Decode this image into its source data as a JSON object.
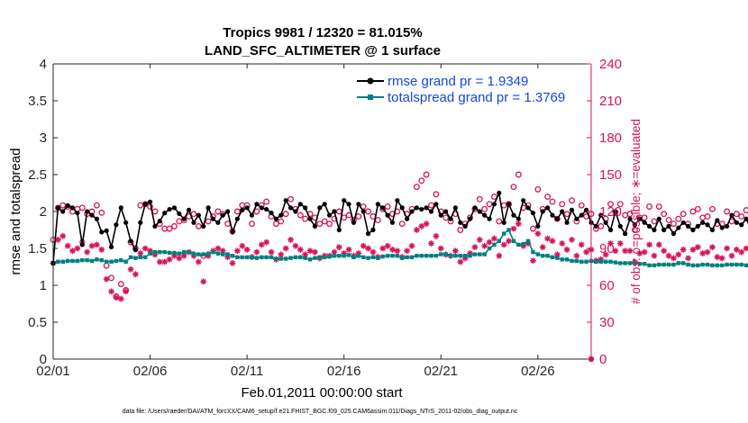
{
  "chart_data": {
    "type": "line",
    "title": "Tropics 9981 / 12320 = 81.015%",
    "subtitle": "LAND_SFC_ALTIMETER @ 1 surface",
    "xlabel": "Feb.01,2011 00:00:00 start",
    "ylabel": "rmse and totalspread",
    "y2label": "# of obs: o=possible; ∗=evaluated",
    "footer": "data file: /Users/raeder/DAI/ATM_forcXX/CAM6_setup/f.e21.FHIST_BGC.f09_025.CAM6assim.011/Diags_NTrS_2011-02/obs_diag_output.nc",
    "x_tick_labels": [
      "02/01",
      "02/06",
      "02/11",
      "02/16",
      "02/21",
      "02/26"
    ],
    "x_tick_days": [
      0,
      5,
      10,
      15,
      20,
      25
    ],
    "xlim_days": [
      0,
      27.75
    ],
    "ylim": [
      0,
      4
    ],
    "y_ticks": [
      0,
      0.5,
      1,
      1.5,
      2,
      2.5,
      3,
      3.5,
      4
    ],
    "y_tick_labels": [
      "0",
      "0.5",
      "1",
      "1.5",
      "2",
      "2.5",
      "3",
      "3.5",
      "4"
    ],
    "y2lim": [
      0,
      240
    ],
    "y2_ticks": [
      0,
      30,
      60,
      90,
      120,
      150,
      180,
      210,
      240
    ],
    "y2_tick_labels": [
      "0",
      "30",
      "60",
      "90",
      "120",
      "150",
      "180",
      "210",
      "240"
    ],
    "x_step_days": 0.25,
    "legend_position": "top-right",
    "series": [
      {
        "name": "rmse grand pr = 1.9349",
        "color": "#000000",
        "marker": "filled-circle",
        "axis": "left",
        "values": [
          1.3,
          2.05,
          2.0,
          2.08,
          2.05,
          1.98,
          1.55,
          2.0,
          1.95,
          1.9,
          1.72,
          1.74,
          1.52,
          1.82,
          2.05,
          1.85,
          1.6,
          1.48,
          1.85,
          2.1,
          2.13,
          1.8,
          1.87,
          1.98,
          2.03,
          2.05,
          1.97,
          1.9,
          2.02,
          1.85,
          1.95,
          1.8,
          2.05,
          1.9,
          1.85,
          1.95,
          2.0,
          1.72,
          1.9,
          2.02,
          2.05,
          1.95,
          2.1,
          2.05,
          2.03,
          1.98,
          1.9,
          1.95,
          2.15,
          2.05,
          2.0,
          2.1,
          2.05,
          1.9,
          1.8,
          2.05,
          2.1,
          1.95,
          2.0,
          1.75,
          2.15,
          2.1,
          1.85,
          2.1,
          2.0,
          1.7,
          1.75,
          2.1,
          2.05,
          1.95,
          1.85,
          2.15,
          2.05,
          1.9,
          2.0,
          2.05,
          2.03,
          2.05,
          2.0,
          2.1,
          1.95,
          2.0,
          1.9,
          2.05,
          1.85,
          1.8,
          1.9,
          2.05,
          2.0,
          1.95,
          1.9,
          2.1,
          2.25,
          1.85,
          2.1,
          1.95,
          1.9,
          2.15,
          2.05,
          1.98,
          1.8,
          2.0,
          2.05,
          1.95,
          1.9,
          2.0,
          1.85,
          2.02,
          1.9,
          1.95,
          2.02,
          1.85,
          1.8,
          1.95,
          1.85,
          1.75,
          2.0,
          1.8,
          1.7,
          1.9,
          1.82,
          1.9,
          1.85,
          1.8,
          1.75,
          1.9,
          1.75,
          1.8,
          1.7,
          1.78,
          1.85,
          1.8,
          1.75,
          1.8,
          1.85,
          1.82,
          1.75,
          1.88,
          1.78,
          1.8,
          1.95,
          1.85,
          1.82,
          1.9,
          1.75,
          2.05,
          1.9,
          2.1,
          1.85,
          1.9,
          2.0,
          2.2,
          2.0,
          1.9,
          1.85,
          1.95,
          1.98,
          2.1,
          2.12,
          1.95,
          2.08,
          1.8,
          1.95,
          1.96,
          1.98
        ]
      },
      {
        "name": "totalspread grand pr = 1.3769",
        "color": "#008080",
        "marker": "filled-square",
        "axis": "left",
        "values": [
          1.3,
          1.32,
          1.32,
          1.33,
          1.33,
          1.33,
          1.34,
          1.34,
          1.33,
          1.35,
          1.34,
          1.32,
          1.32,
          1.33,
          1.34,
          1.32,
          1.38,
          1.37,
          1.38,
          1.38,
          1.43,
          1.45,
          1.45,
          1.45,
          1.44,
          1.44,
          1.43,
          1.45,
          1.45,
          1.43,
          1.42,
          1.42,
          1.43,
          1.45,
          1.43,
          1.42,
          1.42,
          1.4,
          1.38,
          1.38,
          1.38,
          1.38,
          1.37,
          1.38,
          1.38,
          1.38,
          1.36,
          1.36,
          1.36,
          1.37,
          1.38,
          1.38,
          1.37,
          1.35,
          1.37,
          1.38,
          1.38,
          1.39,
          1.4,
          1.4,
          1.4,
          1.41,
          1.38,
          1.4,
          1.38,
          1.37,
          1.38,
          1.37,
          1.39,
          1.4,
          1.4,
          1.4,
          1.37,
          1.38,
          1.38,
          1.4,
          1.4,
          1.4,
          1.4,
          1.4,
          1.42,
          1.42,
          1.4,
          1.4,
          1.4,
          1.4,
          1.4,
          1.42,
          1.42,
          1.42,
          1.5,
          1.55,
          1.6,
          1.7,
          1.75,
          1.6,
          1.55,
          1.56,
          1.6,
          1.45,
          1.42,
          1.4,
          1.4,
          1.38,
          1.37,
          1.35,
          1.35,
          1.33,
          1.33,
          1.32,
          1.32,
          1.33,
          1.32,
          1.32,
          1.32,
          1.32,
          1.31,
          1.3,
          1.3,
          1.3,
          1.3,
          1.29,
          1.29,
          1.27,
          1.27,
          1.28,
          1.28,
          1.28,
          1.28,
          1.3,
          1.3,
          1.28,
          1.27,
          1.27,
          1.28,
          1.28,
          1.27,
          1.27,
          1.27,
          1.28,
          1.28,
          1.28,
          1.28,
          1.27,
          1.27,
          1.28,
          1.29,
          1.3,
          1.3,
          1.3,
          1.3,
          1.28,
          1.27,
          1.27,
          1.27,
          1.28,
          1.27,
          1.28,
          1.27,
          1.25,
          1.27,
          1.28,
          1.28,
          1.28,
          1.27,
          1.27,
          1.27,
          1.27
        ]
      },
      {
        "name": "# obs possible",
        "color": "#d6145a",
        "marker": "open-circle",
        "axis": "right",
        "values": [
          97,
          123,
          125,
          124,
          120,
          122,
          123,
          118,
          120,
          125,
          119,
          76,
          66,
          51,
          61,
          56,
          95,
          90,
          125,
          126,
          124,
          120,
          110,
          106,
          106,
          108,
          112,
          113,
          116,
          118,
          108,
          84,
          112,
          116,
          120,
          118,
          110,
          104,
          120,
          125,
          125,
          110,
          120,
          125,
          128,
          116,
          110,
          112,
          118,
          130,
          122,
          117,
          114,
          118,
          115,
          110,
          112,
          110,
          114,
          120,
          115,
          117,
          113,
          116,
          124,
          120,
          116,
          113,
          122,
          124,
          118,
          120,
          110,
          118,
          122,
          140,
          145,
          150,
          125,
          134,
          120,
          115,
          112,
          118,
          105,
          110,
          115,
          122,
          130,
          122,
          126,
          132,
          112,
          125,
          126,
          140,
          150,
          123,
          125,
          106,
          138,
          122,
          132,
          128,
          114,
          126,
          118,
          129,
          112,
          125,
          116,
          118,
          106,
          108,
          114,
          126,
          119,
          126,
          117,
          118,
          105,
          115,
          115,
          124,
          112,
          124,
          118,
          113,
          110,
          114,
          118,
          110,
          120,
          122,
          115,
          116,
          122,
          110,
          110,
          120,
          112,
          118,
          116,
          121,
          126,
          122,
          109,
          116,
          120,
          108,
          130,
          108,
          125,
          114,
          110,
          116,
          112,
          122,
          115,
          110,
          118,
          111,
          118,
          116
        ]
      },
      {
        "name": "# obs evaluated",
        "color": "#d6145a",
        "marker": "asterisk",
        "axis": "right",
        "values": [
          78,
          97,
          100,
          92,
          88,
          90,
          95,
          87,
          92,
          93,
          89,
          65,
          55,
          50,
          49,
          55,
          73,
          69,
          86,
          90,
          88,
          85,
          79,
          79,
          81,
          84,
          82,
          84,
          87,
          84,
          79,
          63,
          84,
          88,
          90,
          88,
          83,
          78,
          88,
          92,
          89,
          83,
          87,
          93,
          95,
          87,
          81,
          85,
          90,
          97,
          92,
          89,
          85,
          88,
          87,
          82,
          84,
          84,
          87,
          91,
          86,
          89,
          84,
          86,
          92,
          90,
          87,
          83,
          90,
          92,
          89,
          88,
          83,
          88,
          92,
          105,
          108,
          110,
          94,
          100,
          90,
          85,
          84,
          88,
          79,
          82,
          86,
          91,
          97,
          92,
          95,
          98,
          84,
          93,
          96,
          106,
          110,
          92,
          94,
          80,
          102,
          91,
          98,
          96,
          85,
          94,
          89,
          97,
          84,
          93,
          87,
          89,
          80,
          81,
          85,
          94,
          88,
          94,
          88,
          88,
          79,
          86,
          87,
          93,
          84,
          93,
          88,
          84,
          82,
          85,
          89,
          82,
          89,
          91,
          86,
          87,
          91,
          83,
          82,
          90,
          84,
          89,
          87,
          90,
          94,
          91,
          81,
          87,
          90,
          80,
          96,
          80,
          93,
          85,
          82,
          87,
          83,
          91,
          86,
          82,
          88,
          83,
          88,
          87
        ]
      }
    ]
  }
}
